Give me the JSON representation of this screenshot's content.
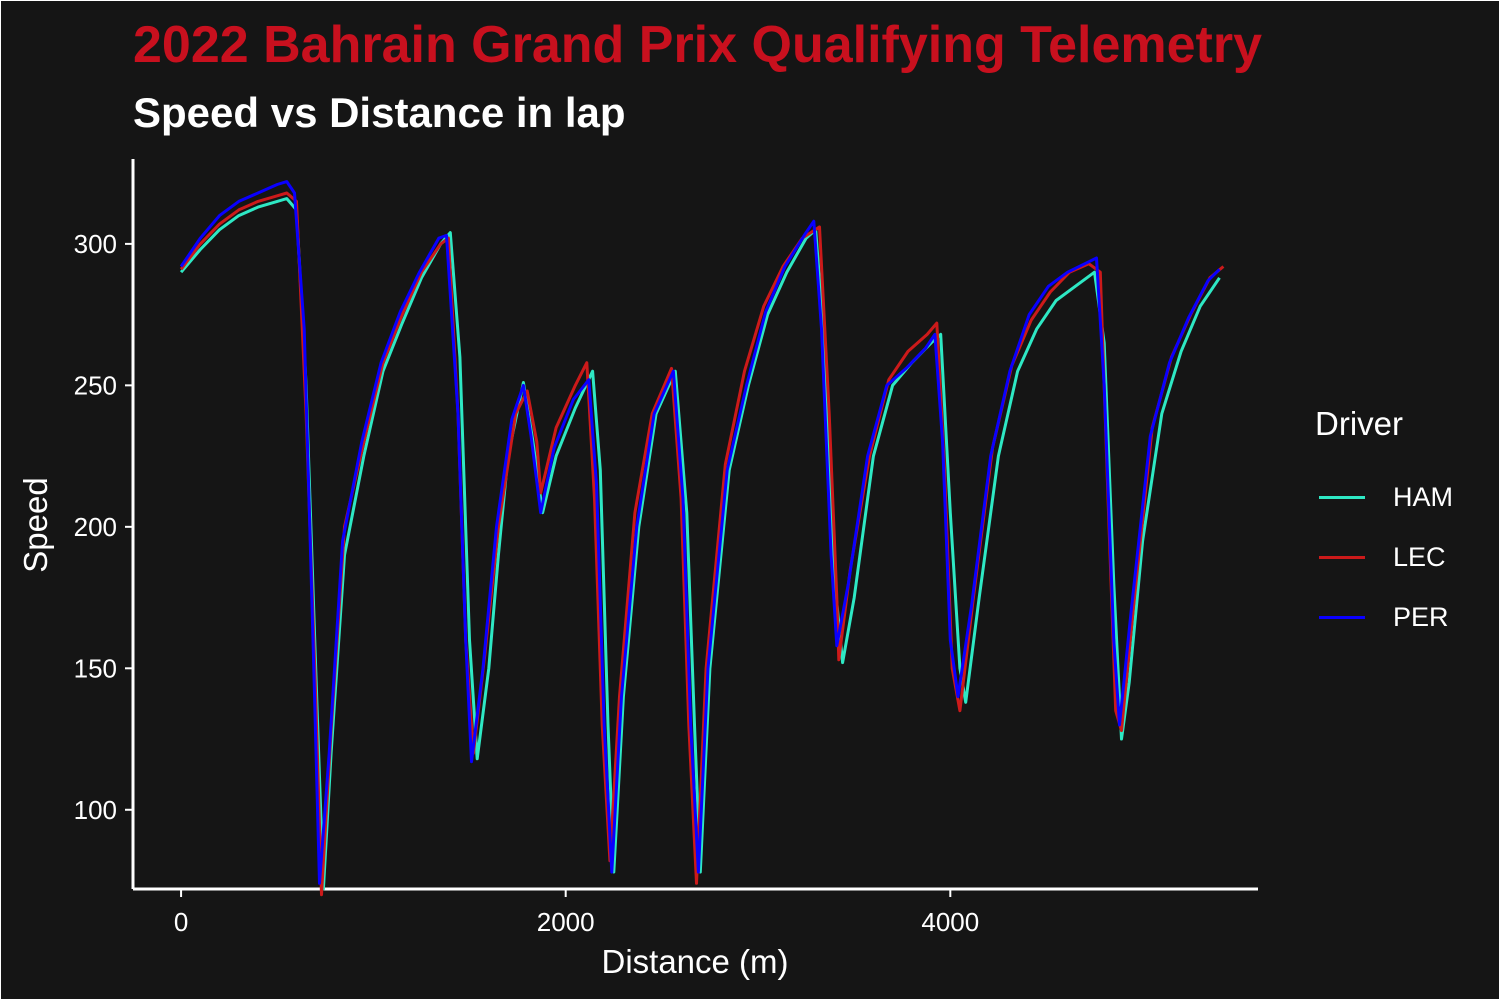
{
  "chart_data": {
    "type": "line",
    "title": "2022 Bahrain Grand Prix Qualifying Telemetry",
    "subtitle": "Speed vs Distance in lap",
    "xlabel": "Distance (m)",
    "ylabel": "Speed",
    "xlim": [
      -250,
      5600
    ],
    "ylim": [
      72,
      330
    ],
    "x_ticks": [
      0,
      2000,
      4000
    ],
    "y_ticks": [
      100,
      150,
      200,
      250,
      300
    ],
    "grid": false,
    "legend": {
      "title": "Driver",
      "position": "right"
    },
    "series": [
      {
        "name": "HAM",
        "color": "#2ee8c4",
        "points": [
          [
            0,
            290
          ],
          [
            100,
            298
          ],
          [
            200,
            305
          ],
          [
            300,
            310
          ],
          [
            400,
            313
          ],
          [
            500,
            315
          ],
          [
            550,
            316
          ],
          [
            600,
            312
          ],
          [
            650,
            250
          ],
          [
            700,
            150
          ],
          [
            740,
            72
          ],
          [
            780,
            120
          ],
          [
            850,
            190
          ],
          [
            950,
            225
          ],
          [
            1050,
            255
          ],
          [
            1150,
            272
          ],
          [
            1250,
            288
          ],
          [
            1350,
            300
          ],
          [
            1400,
            304
          ],
          [
            1450,
            260
          ],
          [
            1500,
            160
          ],
          [
            1540,
            118
          ],
          [
            1600,
            150
          ],
          [
            1650,
            190
          ],
          [
            1700,
            225
          ],
          [
            1780,
            251
          ],
          [
            1830,
            230
          ],
          [
            1880,
            205
          ],
          [
            1950,
            225
          ],
          [
            2050,
            242
          ],
          [
            2140,
            255
          ],
          [
            2180,
            220
          ],
          [
            2220,
            130
          ],
          [
            2250,
            78
          ],
          [
            2300,
            140
          ],
          [
            2380,
            200
          ],
          [
            2470,
            240
          ],
          [
            2570,
            255
          ],
          [
            2630,
            205
          ],
          [
            2670,
            130
          ],
          [
            2700,
            78
          ],
          [
            2750,
            150
          ],
          [
            2850,
            220
          ],
          [
            2950,
            250
          ],
          [
            3050,
            275
          ],
          [
            3150,
            290
          ],
          [
            3250,
            302
          ],
          [
            3300,
            305
          ],
          [
            3350,
            260
          ],
          [
            3400,
            180
          ],
          [
            3440,
            152
          ],
          [
            3500,
            175
          ],
          [
            3600,
            225
          ],
          [
            3700,
            250
          ],
          [
            3800,
            258
          ],
          [
            3900,
            265
          ],
          [
            3950,
            268
          ],
          [
            4000,
            205
          ],
          [
            4050,
            150
          ],
          [
            4080,
            138
          ],
          [
            4150,
            175
          ],
          [
            4250,
            225
          ],
          [
            4350,
            255
          ],
          [
            4450,
            270
          ],
          [
            4550,
            280
          ],
          [
            4650,
            285
          ],
          [
            4750,
            290
          ],
          [
            4800,
            265
          ],
          [
            4850,
            180
          ],
          [
            4890,
            125
          ],
          [
            4930,
            145
          ],
          [
            5000,
            195
          ],
          [
            5100,
            240
          ],
          [
            5200,
            262
          ],
          [
            5300,
            278
          ],
          [
            5400,
            288
          ]
        ]
      },
      {
        "name": "LEC",
        "color": "#cc1a1a",
        "points": [
          [
            0,
            291
          ],
          [
            100,
            300
          ],
          [
            200,
            307
          ],
          [
            300,
            312
          ],
          [
            400,
            315
          ],
          [
            500,
            317
          ],
          [
            550,
            318
          ],
          [
            600,
            315
          ],
          [
            650,
            240
          ],
          [
            700,
            140
          ],
          [
            730,
            70
          ],
          [
            780,
            128
          ],
          [
            850,
            200
          ],
          [
            950,
            230
          ],
          [
            1050,
            258
          ],
          [
            1150,
            275
          ],
          [
            1250,
            290
          ],
          [
            1350,
            300
          ],
          [
            1390,
            302
          ],
          [
            1440,
            240
          ],
          [
            1480,
            160
          ],
          [
            1520,
            120
          ],
          [
            1580,
            155
          ],
          [
            1650,
            200
          ],
          [
            1740,
            240
          ],
          [
            1800,
            248
          ],
          [
            1850,
            230
          ],
          [
            1870,
            212
          ],
          [
            1950,
            235
          ],
          [
            2050,
            250
          ],
          [
            2110,
            258
          ],
          [
            2150,
            210
          ],
          [
            2190,
            130
          ],
          [
            2230,
            82
          ],
          [
            2280,
            140
          ],
          [
            2360,
            205
          ],
          [
            2450,
            240
          ],
          [
            2550,
            256
          ],
          [
            2600,
            210
          ],
          [
            2640,
            130
          ],
          [
            2680,
            74
          ],
          [
            2730,
            150
          ],
          [
            2830,
            222
          ],
          [
            2930,
            255
          ],
          [
            3030,
            278
          ],
          [
            3130,
            292
          ],
          [
            3230,
            302
          ],
          [
            3320,
            306
          ],
          [
            3370,
            240
          ],
          [
            3410,
            175
          ],
          [
            3420,
            153
          ],
          [
            3480,
            185
          ],
          [
            3580,
            225
          ],
          [
            3680,
            252
          ],
          [
            3780,
            262
          ],
          [
            3880,
            268
          ],
          [
            3930,
            272
          ],
          [
            3970,
            220
          ],
          [
            4010,
            150
          ],
          [
            4050,
            135
          ],
          [
            4120,
            175
          ],
          [
            4220,
            228
          ],
          [
            4320,
            257
          ],
          [
            4420,
            273
          ],
          [
            4520,
            283
          ],
          [
            4620,
            290
          ],
          [
            4720,
            293
          ],
          [
            4780,
            290
          ],
          [
            4820,
            210
          ],
          [
            4860,
            135
          ],
          [
            4890,
            128
          ],
          [
            4950,
            170
          ],
          [
            5050,
            235
          ],
          [
            5150,
            260
          ],
          [
            5250,
            275
          ],
          [
            5350,
            288
          ],
          [
            5420,
            292
          ]
        ]
      },
      {
        "name": "PER",
        "color": "#0a00ff",
        "points": [
          [
            0,
            292
          ],
          [
            100,
            302
          ],
          [
            200,
            310
          ],
          [
            300,
            315
          ],
          [
            400,
            318
          ],
          [
            500,
            321
          ],
          [
            550,
            322
          ],
          [
            590,
            318
          ],
          [
            640,
            270
          ],
          [
            690,
            150
          ],
          [
            720,
            74
          ],
          [
            770,
            120
          ],
          [
            840,
            195
          ],
          [
            940,
            230
          ],
          [
            1040,
            258
          ],
          [
            1140,
            276
          ],
          [
            1240,
            290
          ],
          [
            1340,
            302
          ],
          [
            1380,
            303
          ],
          [
            1440,
            240
          ],
          [
            1480,
            160
          ],
          [
            1510,
            117
          ],
          [
            1570,
            150
          ],
          [
            1640,
            200
          ],
          [
            1720,
            238
          ],
          [
            1780,
            250
          ],
          [
            1820,
            232
          ],
          [
            1870,
            205
          ],
          [
            1940,
            228
          ],
          [
            2040,
            245
          ],
          [
            2120,
            252
          ],
          [
            2160,
            215
          ],
          [
            2200,
            130
          ],
          [
            2240,
            78
          ],
          [
            2290,
            140
          ],
          [
            2370,
            200
          ],
          [
            2460,
            240
          ],
          [
            2560,
            255
          ],
          [
            2610,
            210
          ],
          [
            2650,
            130
          ],
          [
            2690,
            78
          ],
          [
            2740,
            150
          ],
          [
            2840,
            220
          ],
          [
            2940,
            250
          ],
          [
            3040,
            276
          ],
          [
            3140,
            292
          ],
          [
            3240,
            303
          ],
          [
            3290,
            308
          ],
          [
            3330,
            270
          ],
          [
            3380,
            190
          ],
          [
            3410,
            158
          ],
          [
            3470,
            180
          ],
          [
            3570,
            225
          ],
          [
            3670,
            250
          ],
          [
            3770,
            256
          ],
          [
            3870,
            263
          ],
          [
            3920,
            268
          ],
          [
            3960,
            230
          ],
          [
            4000,
            160
          ],
          [
            4040,
            140
          ],
          [
            4110,
            172
          ],
          [
            4210,
            225
          ],
          [
            4310,
            255
          ],
          [
            4410,
            275
          ],
          [
            4510,
            285
          ],
          [
            4610,
            290
          ],
          [
            4700,
            293
          ],
          [
            4760,
            295
          ],
          [
            4800,
            250
          ],
          [
            4850,
            160
          ],
          [
            4880,
            130
          ],
          [
            4940,
            170
          ],
          [
            5040,
            232
          ],
          [
            5140,
            258
          ],
          [
            5240,
            274
          ],
          [
            5340,
            287
          ],
          [
            5400,
            291
          ]
        ]
      }
    ]
  }
}
